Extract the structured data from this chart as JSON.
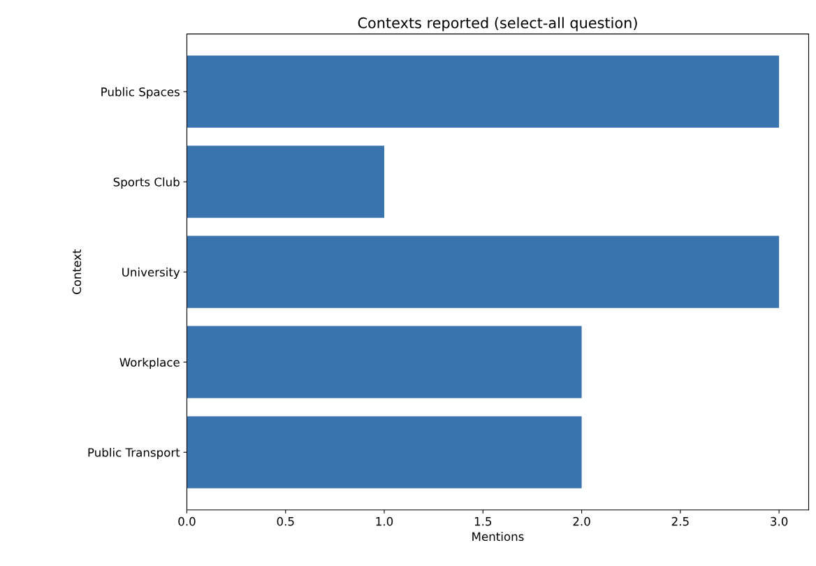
{
  "chart_data": {
    "type": "bar",
    "orientation": "horizontal",
    "title": "Contexts reported (select-all question)",
    "xlabel": "Mentions",
    "ylabel": "Context",
    "categories": [
      "Public Spaces",
      "Sports Club",
      "University",
      "Workplace",
      "Public Transport"
    ],
    "values": [
      3,
      1,
      3,
      2,
      2
    ],
    "color": "#3a74ae",
    "xlim": [
      0,
      3.15
    ],
    "xticks": [
      {
        "value": 0,
        "label": "0.0"
      },
      {
        "value": 0.5,
        "label": "0.5"
      },
      {
        "value": 1,
        "label": "1.0"
      },
      {
        "value": 1.5,
        "label": "1.5"
      },
      {
        "value": 2,
        "label": "2.0"
      },
      {
        "value": 2.5,
        "label": "2.5"
      },
      {
        "value": 3,
        "label": "3.0"
      }
    ],
    "grid": false
  }
}
